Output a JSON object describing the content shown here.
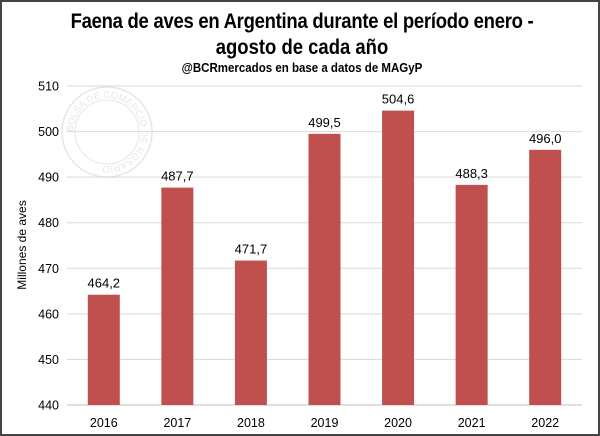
{
  "chart_data": {
    "type": "bar",
    "title": "Faena de aves en Argentina durante el período enero - agosto de cada año",
    "title_line1": "Faena de aves en Argentina durante el período enero -",
    "title_line2": "agosto de cada año",
    "subtitle": "@BCRmercados en base a datos de MAGyP",
    "xlabel": "",
    "ylabel": "Millones de aves",
    "categories": [
      "2016",
      "2017",
      "2018",
      "2019",
      "2020",
      "2021",
      "2022"
    ],
    "values": [
      464.2,
      487.7,
      471.7,
      499.5,
      504.6,
      488.3,
      496.0
    ],
    "data_labels": [
      "464,2",
      "487,7",
      "471,7",
      "499,5",
      "504,6",
      "488,3",
      "496,0"
    ],
    "ylim": [
      440,
      510
    ],
    "yticks": [
      440,
      450,
      460,
      470,
      480,
      490,
      500,
      510
    ],
    "grid": true,
    "legend": "none",
    "bar_color": "#c0504d",
    "watermark": "BOLSA DE COMERCIO DE ROSARIO"
  }
}
